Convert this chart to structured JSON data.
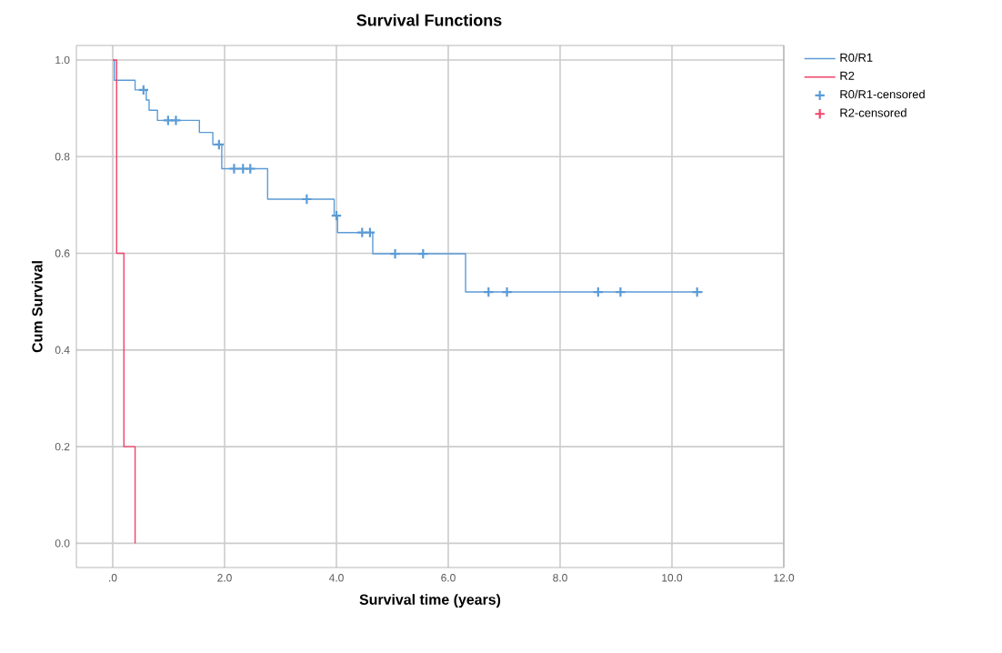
{
  "chart_data": {
    "type": "step",
    "title": "Survival Functions",
    "xlabel": "Survival time (years)",
    "ylabel": "Cum Survival",
    "series": [
      {
        "name": "R0/R1",
        "color": "#5b9bd5",
        "x": [
          0,
          0.03,
          0.4,
          0.6,
          0.65,
          0.8,
          1.55,
          1.79,
          1.95,
          2.77,
          3.96,
          4.02,
          4.65,
          6.31,
          10.55
        ],
        "values": [
          1.0,
          0.958,
          0.938,
          0.917,
          0.896,
          0.875,
          0.85,
          0.825,
          0.775,
          0.712,
          0.678,
          0.643,
          0.599,
          0.52,
          0.52
        ]
      },
      {
        "name": "R2",
        "color": "#f0436a",
        "x": [
          0,
          0.07,
          0.2,
          0.4
        ],
        "values": [
          1.0,
          0.6,
          0.2,
          0.0
        ]
      },
      {
        "name": "R0/R1-censored",
        "type": "scatter",
        "marker": "cross",
        "color": "#5b9bd5",
        "x": [
          0.55,
          0.99,
          1.13,
          1.9,
          2.17,
          2.33,
          2.46,
          3.47,
          4.0,
          4.46,
          4.6,
          5.05,
          5.55,
          6.72,
          7.05,
          8.68,
          9.08,
          10.45
        ],
        "values": [
          0.938,
          0.875,
          0.875,
          0.825,
          0.775,
          0.775,
          0.775,
          0.712,
          0.678,
          0.643,
          0.643,
          0.599,
          0.599,
          0.52,
          0.52,
          0.52,
          0.52,
          0.52
        ]
      },
      {
        "name": "R2-censored",
        "type": "scatter",
        "marker": "cross",
        "color": "#f0436a"
      }
    ],
    "xlim": [
      -0.65,
      12.0
    ],
    "ylim": [
      -0.05,
      1.03
    ],
    "xticks": [
      {
        "value": 0,
        "label": ".0"
      },
      {
        "value": 2,
        "label": "2.0"
      },
      {
        "value": 4,
        "label": "4.0"
      },
      {
        "value": 6,
        "label": "6.0"
      },
      {
        "value": 8,
        "label": "8.0"
      },
      {
        "value": 10,
        "label": "10.0"
      },
      {
        "value": 12,
        "label": "12.0"
      }
    ],
    "yticks": [
      {
        "value": 0,
        "label": "0.0"
      },
      {
        "value": 0.2,
        "label": "0.2"
      },
      {
        "value": 0.4,
        "label": "0.4"
      },
      {
        "value": 0.6,
        "label": "0.6"
      },
      {
        "value": 0.8,
        "label": "0.8"
      },
      {
        "value": 1.0,
        "label": "1.0"
      }
    ],
    "grid": true,
    "legend": "right"
  }
}
